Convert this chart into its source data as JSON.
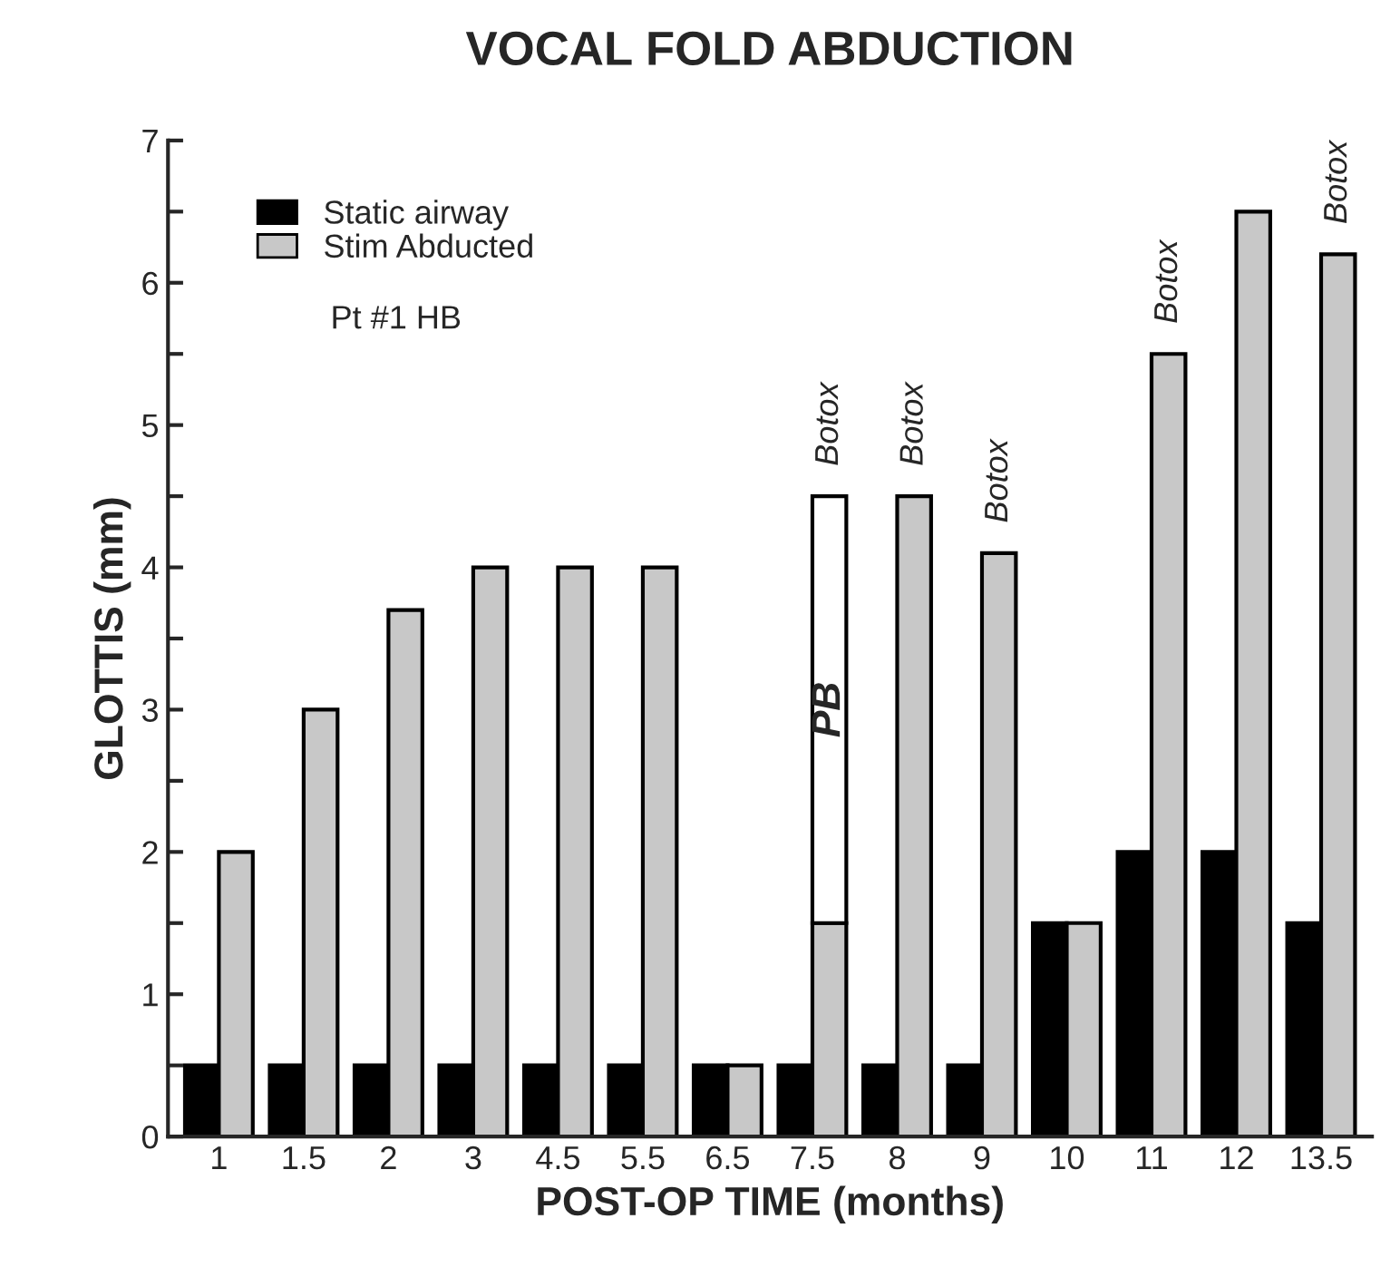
{
  "chart_data": {
    "type": "bar",
    "title": "VOCAL FOLD ABDUCTION",
    "xlabel": "POST-OP TIME (months)",
    "ylabel": "GLOTTIS (mm)",
    "categories": [
      "1",
      "1.5",
      "2",
      "3",
      "4.5",
      "5.5",
      "6.5",
      "7.5",
      "8",
      "9",
      "10",
      "11",
      "12",
      "13.5"
    ],
    "series": [
      {
        "name": "Static airway",
        "color": "#000000",
        "values": [
          0.5,
          0.5,
          0.5,
          0.5,
          0.5,
          0.5,
          0.5,
          0.5,
          0.5,
          0.5,
          1.5,
          2,
          2,
          1.5
        ]
      },
      {
        "name": "Stim Abducted",
        "color": "#c8c8c8",
        "values": [
          2,
          3,
          3.7,
          4,
          4,
          4,
          0.5,
          1.5,
          4.5,
          4.1,
          1.5,
          5.5,
          6.5,
          6.2
        ]
      },
      {
        "name": "PB",
        "color": "#ffffff",
        "values": [
          null,
          null,
          null,
          null,
          null,
          null,
          null,
          3,
          null,
          null,
          null,
          null,
          null,
          null
        ],
        "base": [
          null,
          null,
          null,
          null,
          null,
          null,
          null,
          1.5,
          null,
          null,
          null,
          null,
          null,
          null
        ]
      }
    ],
    "ylim": [
      0,
      7
    ],
    "yticks": [
      0,
      {
        "value": 0.5,
        "label": null
      },
      1,
      {
        "value": 1.5,
        "label": null
      },
      2,
      {
        "value": 2.5,
        "label": null
      },
      3,
      {
        "value": 3.5,
        "label": null
      },
      4,
      {
        "value": 4.5,
        "label": null
      },
      5,
      {
        "value": 5.5,
        "label": null
      },
      6,
      {
        "value": 6.5,
        "label": null
      },
      7
    ],
    "grid": false,
    "legend": "top left",
    "annotations": [
      "Pt #1 HB",
      {
        "text": "Botox",
        "x": "7.5",
        "y": 4.5
      },
      {
        "text": "Botox",
        "x": "8",
        "y": 4.5
      },
      {
        "text": "Botox",
        "x": "9",
        "y": 4.1
      },
      {
        "text": "Botox",
        "x": "11",
        "y": 5.5
      },
      {
        "text": "Botox",
        "x": "13.5",
        "y": 6.2
      }
    ]
  }
}
